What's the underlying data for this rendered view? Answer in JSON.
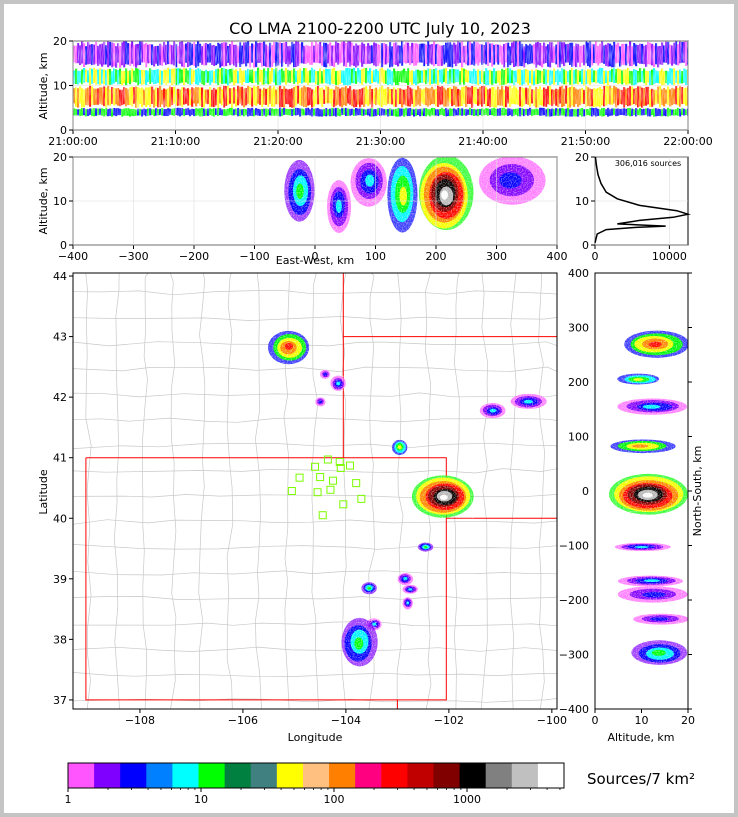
{
  "chart_data": [
    {
      "type": "heatmap",
      "panel": "time-height",
      "title": "CO LMA 2100-2200 UTC July 10, 2023",
      "ylabel": "Altitude, km",
      "ylim": [
        0,
        20
      ],
      "yticks": [
        0,
        10,
        20
      ],
      "xticks": [
        "21:00:00",
        "21:10:00",
        "21:20:00",
        "21:30:00",
        "21:40:00",
        "21:50:00",
        "22:00:00"
      ],
      "rows": [
        {
          "alt_km": [
            0,
            3
          ],
          "level": "none"
        },
        {
          "alt_km": [
            3,
            5
          ],
          "level": "low",
          "colors": [
            "#0000ff",
            "#00ff00"
          ]
        },
        {
          "alt_km": [
            5,
            10
          ],
          "level": "high",
          "colors": [
            "#ff0000",
            "#ff8000",
            "#ffff00"
          ]
        },
        {
          "alt_km": [
            10,
            14
          ],
          "level": "medium",
          "colors": [
            "#00ff00",
            "#ffff00",
            "#00ffff"
          ]
        },
        {
          "alt_km": [
            14,
            20
          ],
          "level": "low",
          "colors": [
            "#ff55ff",
            "#8000ff",
            "#0000ff"
          ]
        }
      ]
    },
    {
      "type": "heatmap",
      "panel": "east-west-altitude",
      "xlabel": "East-West, km",
      "ylabel": "Altitude, km",
      "xlim": [
        -400,
        400
      ],
      "ylim": [
        0,
        20
      ],
      "xticks": [
        -400,
        -300,
        -200,
        -100,
        0,
        100,
        200,
        300,
        400
      ],
      "yticks": [
        0,
        10,
        20
      ],
      "cells": [
        {
          "x": [
            -50,
            0
          ],
          "alt": [
            5,
            19
          ],
          "peak": "green"
        },
        {
          "x": [
            20,
            60
          ],
          "alt": [
            3,
            15
          ],
          "peak": "cyan"
        },
        {
          "x": [
            60,
            120
          ],
          "alt": [
            9,
            20
          ],
          "peak": "cyan"
        },
        {
          "x": [
            120,
            170
          ],
          "alt": [
            3,
            20
          ],
          "peak": "yellow"
        },
        {
          "x": [
            170,
            260
          ],
          "alt": [
            3,
            20
          ],
          "peak": "white"
        },
        {
          "x": [
            270,
            380
          ],
          "alt": [
            9,
            20
          ],
          "peak": "blue"
        }
      ]
    },
    {
      "type": "line",
      "panel": "altitude-histogram",
      "annotation": "306,016 sources",
      "xlim": [
        0,
        12500
      ],
      "ylim": [
        0,
        20
      ],
      "xticks": [
        0,
        10000
      ],
      "yticks": [
        0,
        10,
        20
      ],
      "points": [
        [
          0,
          0.5
        ],
        [
          300,
          2.5
        ],
        [
          1500,
          3.5
        ],
        [
          5500,
          4.0
        ],
        [
          9500,
          4.3
        ],
        [
          3000,
          4.8
        ],
        [
          6000,
          5.6
        ],
        [
          10500,
          6.3
        ],
        [
          12500,
          7.0
        ],
        [
          11000,
          7.8
        ],
        [
          6000,
          9.0
        ],
        [
          3000,
          10.5
        ],
        [
          1500,
          12.0
        ],
        [
          800,
          14.0
        ],
        [
          400,
          16.0
        ],
        [
          200,
          18.0
        ],
        [
          50,
          20.0
        ]
      ]
    },
    {
      "type": "heatmap",
      "panel": "plan-view",
      "xlabel": "Longitude",
      "ylabel": "Latitude",
      "xlim": [
        -109.3,
        -99.9
      ],
      "ylim": [
        36.85,
        44.05
      ],
      "xticks": [
        -108,
        -106,
        -104,
        -102,
        -100
      ],
      "yticks": [
        37,
        38,
        39,
        40,
        41,
        42,
        43,
        44
      ],
      "state_borders": [
        [
          [
            -109.05,
            41.0
          ],
          [
            -102.05,
            41.0
          ],
          [
            -102.05,
            37.0
          ],
          [
            -109.05,
            37.0
          ],
          [
            -109.05,
            41.0
          ]
        ],
        [
          [
            -104.05,
            44.05
          ],
          [
            -104.05,
            41.0
          ]
        ],
        [
          [
            -104.05,
            43.0
          ],
          [
            -99.9,
            43.0
          ]
        ],
        [
          [
            -102.05,
            40.0
          ],
          [
            -99.9,
            40.0
          ]
        ],
        [
          [
            -103.0,
            37.0
          ],
          [
            -103.0,
            36.85
          ]
        ]
      ],
      "cells": [
        {
          "lon": [
            -105.5,
            -104.7
          ],
          "lat": [
            42.55,
            43.1
          ],
          "peak": "red"
        },
        {
          "lon": [
            -104.3,
            -104.0
          ],
          "lat": [
            42.1,
            42.35
          ],
          "peak": "cyan"
        },
        {
          "lon": [
            -104.6,
            -104.4
          ],
          "lat": [
            41.85,
            42.0
          ],
          "peak": "blue"
        },
        {
          "lon": [
            -104.5,
            -104.3
          ],
          "lat": [
            42.3,
            42.45
          ],
          "peak": "blue"
        },
        {
          "lon": [
            -103.1,
            -102.8
          ],
          "lat": [
            41.05,
            41.3
          ],
          "peak": "yellow"
        },
        {
          "lon": [
            -101.4,
            -100.9
          ],
          "lat": [
            41.65,
            41.9
          ],
          "peak": "cyan"
        },
        {
          "lon": [
            -100.8,
            -100.1
          ],
          "lat": [
            41.8,
            42.05
          ],
          "peak": "cyan"
        },
        {
          "lon": [
            -102.7,
            -101.5
          ],
          "lat": [
            40.0,
            40.7
          ],
          "peak": "white"
        },
        {
          "lon": [
            -102.6,
            -102.3
          ],
          "lat": [
            39.45,
            39.6
          ],
          "peak": "green"
        },
        {
          "lon": [
            -103.0,
            -102.7
          ],
          "lat": [
            38.9,
            39.1
          ],
          "peak": "cyan"
        },
        {
          "lon": [
            -102.9,
            -102.6
          ],
          "lat": [
            38.75,
            38.9
          ],
          "peak": "cyan"
        },
        {
          "lon": [
            -102.9,
            -102.7
          ],
          "lat": [
            38.5,
            38.7
          ],
          "peak": "cyan"
        },
        {
          "lon": [
            -103.7,
            -103.4
          ],
          "lat": [
            38.75,
            38.95
          ],
          "peak": "green"
        },
        {
          "lon": [
            -103.6,
            -103.3
          ],
          "lat": [
            38.15,
            38.35
          ],
          "peak": "cyan"
        },
        {
          "lon": [
            -104.1,
            -103.4
          ],
          "lat": [
            37.55,
            38.35
          ],
          "peak": "green"
        }
      ],
      "stations": [
        [
          -104.35,
          40.97
        ],
        [
          -104.12,
          40.93
        ],
        [
          -103.92,
          40.87
        ],
        [
          -104.6,
          40.85
        ],
        [
          -104.1,
          40.83
        ],
        [
          -104.9,
          40.67
        ],
        [
          -104.5,
          40.68
        ],
        [
          -104.25,
          40.62
        ],
        [
          -103.8,
          40.58
        ],
        [
          -105.05,
          40.45
        ],
        [
          -104.55,
          40.43
        ],
        [
          -104.3,
          40.47
        ],
        [
          -103.7,
          40.32
        ],
        [
          -104.05,
          40.23
        ],
        [
          -104.45,
          40.05
        ]
      ]
    },
    {
      "type": "heatmap",
      "panel": "altitude-north-south",
      "xlabel": "Altitude, km",
      "ylabel": "North-South, km",
      "xlim": [
        0,
        20
      ],
      "ylim": [
        -400,
        400
      ],
      "xticks": [
        0,
        10,
        20
      ],
      "yticks": [
        -400,
        -300,
        -200,
        -100,
        0,
        100,
        200,
        300,
        400
      ],
      "cells": [
        {
          "alt": [
            6,
            20
          ],
          "ns": [
            245,
            295
          ],
          "peak": "red"
        },
        {
          "alt": [
            5,
            14
          ],
          "ns": [
            195,
            215
          ],
          "peak": "yellow"
        },
        {
          "alt": [
            5,
            20
          ],
          "ns": [
            140,
            170
          ],
          "peak": "cyan"
        },
        {
          "alt": [
            3,
            17
          ],
          "ns": [
            70,
            95
          ],
          "peak": "orange"
        },
        {
          "alt": [
            3,
            20
          ],
          "ns": [
            -45,
            30
          ],
          "peak": "white"
        },
        {
          "alt": [
            4,
            16
          ],
          "ns": [
            -110,
            -95
          ],
          "peak": "cyan"
        },
        {
          "alt": [
            5,
            19
          ],
          "ns": [
            -175,
            -155
          ],
          "peak": "cyan"
        },
        {
          "alt": [
            5,
            20
          ],
          "ns": [
            -205,
            -175
          ],
          "peak": "blue"
        },
        {
          "alt": [
            8,
            20
          ],
          "ns": [
            -245,
            -225
          ],
          "peak": "blue"
        },
        {
          "alt": [
            8,
            20
          ],
          "ns": [
            -320,
            -275
          ],
          "peak": "green"
        }
      ]
    },
    {
      "type": "colorbar",
      "label": "Sources/7 km²",
      "tick_labels": [
        "1",
        "10",
        "100",
        "1000"
      ],
      "tick_values": [
        1,
        10,
        100,
        1000
      ],
      "colors": [
        "#ff55ff",
        "#8000ff",
        "#0000ff",
        "#0080ff",
        "#00ffff",
        "#00ff00",
        "#008040",
        "#408080",
        "#ffff00",
        "#ffc080",
        "#ff8000",
        "#ff0080",
        "#ff0000",
        "#c00000",
        "#800000",
        "#000000",
        "#808080",
        "#c0c0c0",
        "#ffffff"
      ]
    }
  ]
}
